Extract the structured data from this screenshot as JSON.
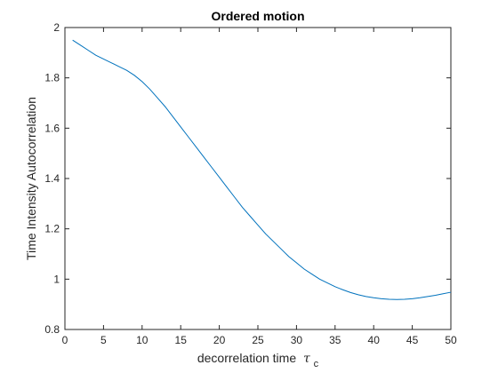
{
  "chart_data": {
    "type": "line",
    "title": "Ordered motion",
    "xlabel": "decorrelation time",
    "xlabel_symbol": "τ",
    "xlabel_subscript": "c",
    "ylabel": "Time Intensity Autocorrelation",
    "xlim": [
      0,
      50
    ],
    "ylim": [
      0.8,
      2
    ],
    "x_ticks": [
      0,
      5,
      10,
      15,
      20,
      25,
      30,
      35,
      40,
      45,
      50
    ],
    "x_tick_labels": [
      "0",
      "5",
      "10",
      "15",
      "20",
      "25",
      "30",
      "35",
      "40",
      "45",
      "50"
    ],
    "y_ticks": [
      0.8,
      1,
      1.2,
      1.4,
      1.6,
      1.8,
      2
    ],
    "y_tick_labels": [
      "0.8",
      "1",
      "1.2",
      "1.4",
      "1.6",
      "1.8",
      "2"
    ],
    "grid": false,
    "line_color": "#0072BD",
    "series": [
      {
        "x": [
          1,
          2,
          3,
          4,
          5,
          6,
          7,
          8,
          9,
          10,
          11,
          12,
          13,
          14,
          15,
          16,
          17,
          18,
          19,
          20,
          21,
          22,
          23,
          24,
          25,
          26,
          27,
          28,
          29,
          30,
          31,
          32,
          33,
          34,
          35,
          36,
          37,
          38,
          39,
          40,
          41,
          42,
          43,
          44,
          45,
          46,
          47,
          48,
          49,
          50
        ],
        "y": [
          1.95,
          1.93,
          1.91,
          1.89,
          1.875,
          1.86,
          1.845,
          1.83,
          1.81,
          1.785,
          1.755,
          1.72,
          1.685,
          1.645,
          1.605,
          1.565,
          1.525,
          1.485,
          1.445,
          1.405,
          1.365,
          1.325,
          1.285,
          1.25,
          1.215,
          1.18,
          1.15,
          1.12,
          1.09,
          1.065,
          1.04,
          1.02,
          1.0,
          0.985,
          0.97,
          0.958,
          0.947,
          0.938,
          0.931,
          0.926,
          0.922,
          0.92,
          0.919,
          0.92,
          0.922,
          0.926,
          0.931,
          0.936,
          0.942,
          0.948
        ]
      }
    ]
  }
}
